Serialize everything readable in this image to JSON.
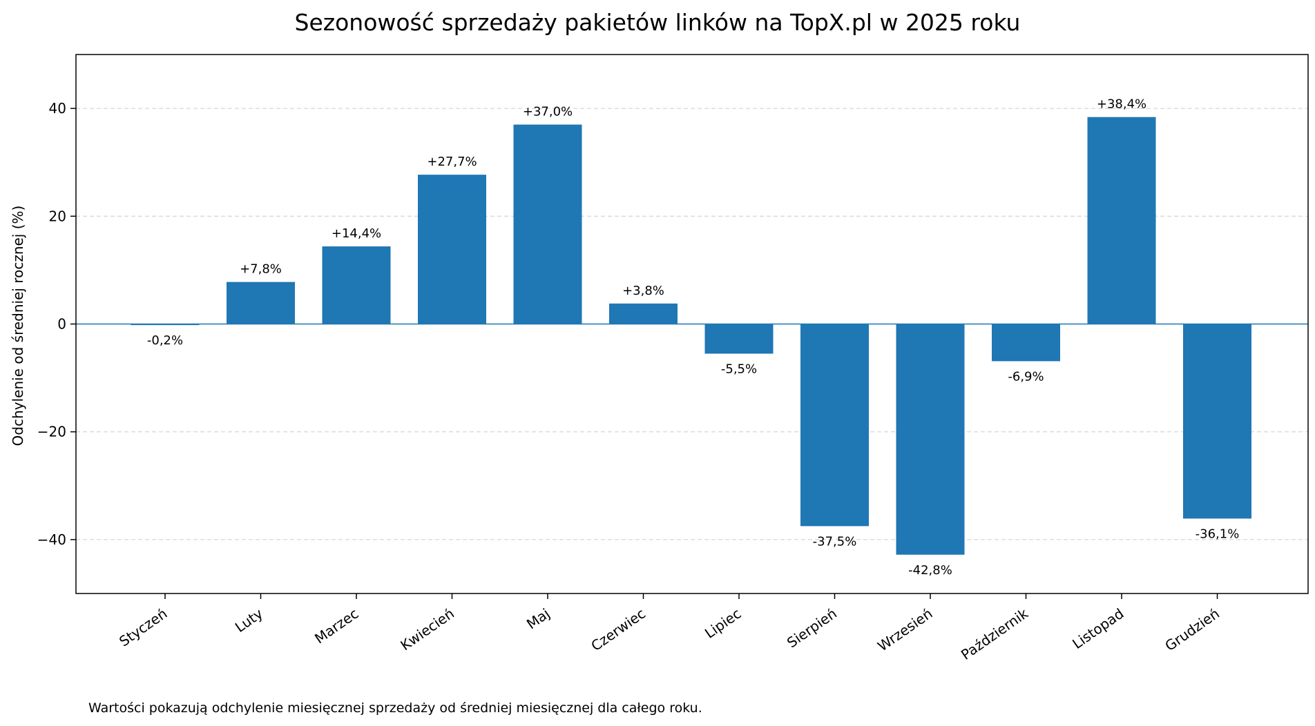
{
  "chart_data": {
    "type": "bar",
    "title": "Sezonowość sprzedaży pakietów linków na TopX.pl w 2025 roku",
    "xlabel": "",
    "ylabel": "Odchylenie od średniej rocznej (%)",
    "ylim": [
      -50,
      50
    ],
    "yticks": [
      40,
      20,
      0,
      -20,
      -40
    ],
    "ytick_labels": [
      "40",
      "20",
      "0",
      "−20",
      "−40"
    ],
    "grid": "horizontal-dashed",
    "categories": [
      "Styczeń",
      "Luty",
      "Marzec",
      "Kwiecień",
      "Maj",
      "Czerwiec",
      "Lipiec",
      "Sierpień",
      "Wrzesień",
      "Październik",
      "Listopad",
      "Grudzień"
    ],
    "values": [
      -0.2,
      7.8,
      14.4,
      27.7,
      37.0,
      3.8,
      -5.5,
      -37.5,
      -42.8,
      -6.9,
      38.4,
      -36.1
    ],
    "data_labels": [
      "-0,2%",
      "+7,8%",
      "+14,4%",
      "+27,7%",
      "+37,0%",
      "+3,8%",
      "-5,5%",
      "-37,5%",
      "-42,8%",
      "-6,9%",
      "+38,4%",
      "-36,1%"
    ],
    "bar_color": "#1f77b4",
    "footnote": "Wartości pokazują odchylenie miesięcznej sprzedaży od średniej miesięcznej dla całego roku."
  }
}
